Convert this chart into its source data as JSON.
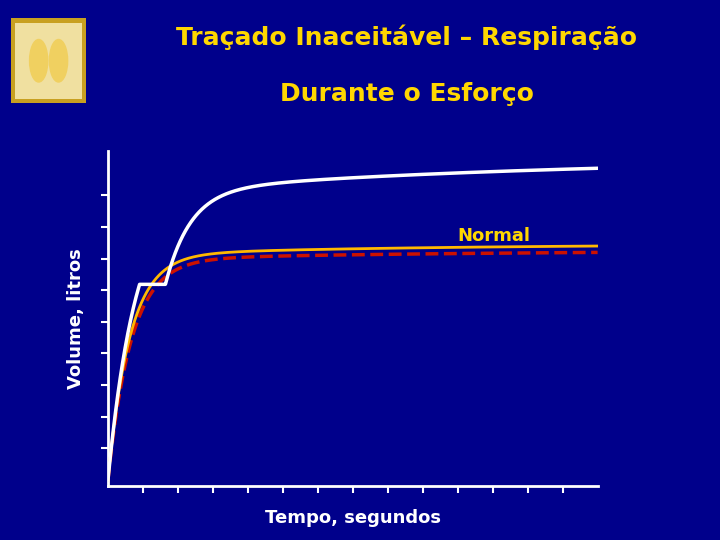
{
  "title_line1": "Traçado Inaceitável – Respiração",
  "title_line2": "Durante o Esforço",
  "title_color": "#FFD700",
  "background_color": "#00008B",
  "xlabel": "Tempo, segundos",
  "ylabel": "Volume, litros",
  "axis_color": "#FFFFFF",
  "label_color": "#FFFFFF",
  "normal_label": "Normal",
  "normal_label_color": "#FFD700",
  "separator_color": "#C8A020",
  "white_curve_color": "#FFFFFF",
  "yellow_curve_color": "#FFB800",
  "red_curve_color": "#CC1100"
}
